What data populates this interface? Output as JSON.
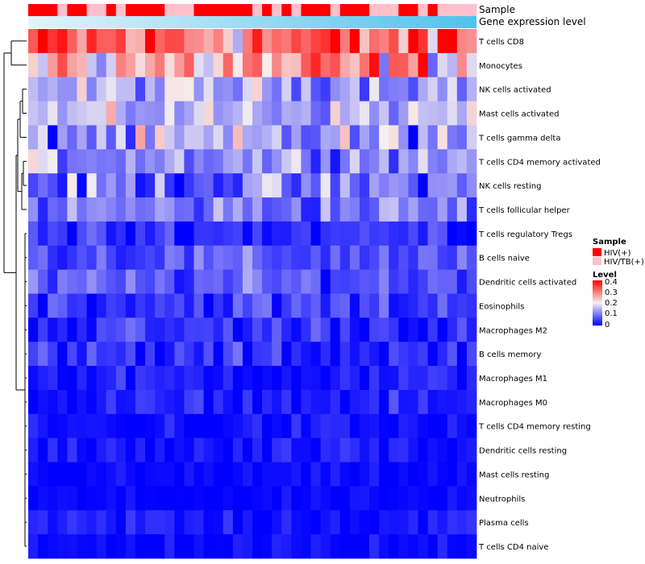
{
  "chart_data": {
    "type": "heatmap",
    "title": "",
    "annotation_labels": {
      "sample": "Sample",
      "gene_level": "Gene expression level"
    },
    "rows": [
      "T cells CD8",
      "Monocytes",
      "NK cells activated",
      "Mast cells activated",
      "T cells gamma delta",
      "T cells CD4 memory activated",
      "NK cells resting",
      "T cells follicular helper",
      "T cells regulatory  Tregs",
      "B cells naive",
      "Dendritic cells activated",
      "Eosinophils",
      "Macrophages M2",
      "B cells memory",
      "Macrophages M1",
      "Macrophages M0",
      "T cells CD4 memory resting",
      "Dendritic cells resting",
      "Mast cells resting",
      "Neutrophils",
      "Plasma cells",
      "T cells CD4 naive"
    ],
    "n_samples": 46,
    "sample_groups": [
      "HIV(+)",
      "HIV(+)",
      "HIV(+)",
      "HIV/TB(+)",
      "HIV(+)",
      "HIV(+)",
      "HIV/TB(+)",
      "HIV/TB(+)",
      "HIV(+)",
      "HIV/TB(+)",
      "HIV(+)",
      "HIV(+)",
      "HIV(+)",
      "HIV(+)",
      "HIV/TB(+)",
      "HIV/TB(+)",
      "HIV/TB(+)",
      "HIV(+)",
      "HIV(+)",
      "HIV(+)",
      "HIV(+)",
      "HIV(+)",
      "HIV(+)",
      "HIV/TB(+)",
      "HIV(+)",
      "HIV/TB(+)",
      "HIV(+)",
      "HIV/TB(+)",
      "HIV(+)",
      "HIV(+)",
      "HIV(+)",
      "HIV/TB(+)",
      "HIV(+)",
      "HIV(+)",
      "HIV(+)",
      "HIV/TB(+)",
      "HIV/TB(+)",
      "HIV/TB(+)",
      "HIV(+)",
      "HIV(+)",
      "HIV/TB(+)",
      "HIV(+)",
      "HIV/TB(+)",
      "HIV/TB(+)",
      "HIV/TB(+)",
      "HIV/TB(+)"
    ],
    "gene_level_range": [
      0,
      1
    ],
    "value_range": [
      0,
      0.4
    ],
    "row_profiles": [
      [
        0.31,
        0.09
      ],
      [
        0.25,
        0.08
      ],
      [
        0.14,
        0.04
      ],
      [
        0.15,
        0.04
      ],
      [
        0.12,
        0.06
      ],
      [
        0.13,
        0.04
      ],
      [
        0.09,
        0.05
      ],
      [
        0.1,
        0.04
      ],
      [
        0.04,
        0.03
      ],
      [
        0.07,
        0.03
      ],
      [
        0.07,
        0.03
      ],
      [
        0.05,
        0.03
      ],
      [
        0.04,
        0.03
      ],
      [
        0.03,
        0.03
      ],
      [
        0.02,
        0.02
      ],
      [
        0.02,
        0.02
      ],
      [
        0.01,
        0.02
      ],
      [
        0.01,
        0.02
      ],
      [
        0.005,
        0.01
      ],
      [
        0.003,
        0.008
      ],
      [
        0.02,
        0.02
      ],
      [
        0.005,
        0.015
      ]
    ],
    "palette": {
      "low": "#0000ff",
      "mid": "#f5f0f0",
      "high": "#ff0000"
    },
    "legend": {
      "sample_title": "Sample",
      "sample_items": [
        {
          "label": "HIV(+)",
          "color": "#ff0000"
        },
        {
          "label": "HIV/TB(+)",
          "color": "#ffc0cb"
        }
      ],
      "level_title": "Level",
      "level_ticks": [
        "0.4",
        "0.3",
        "0.2",
        "0.1",
        "0"
      ],
      "position": "right"
    },
    "annotation_colors": {
      "gene_light": "#e3f3fb",
      "gene_dark": "#4ec3ec"
    }
  }
}
